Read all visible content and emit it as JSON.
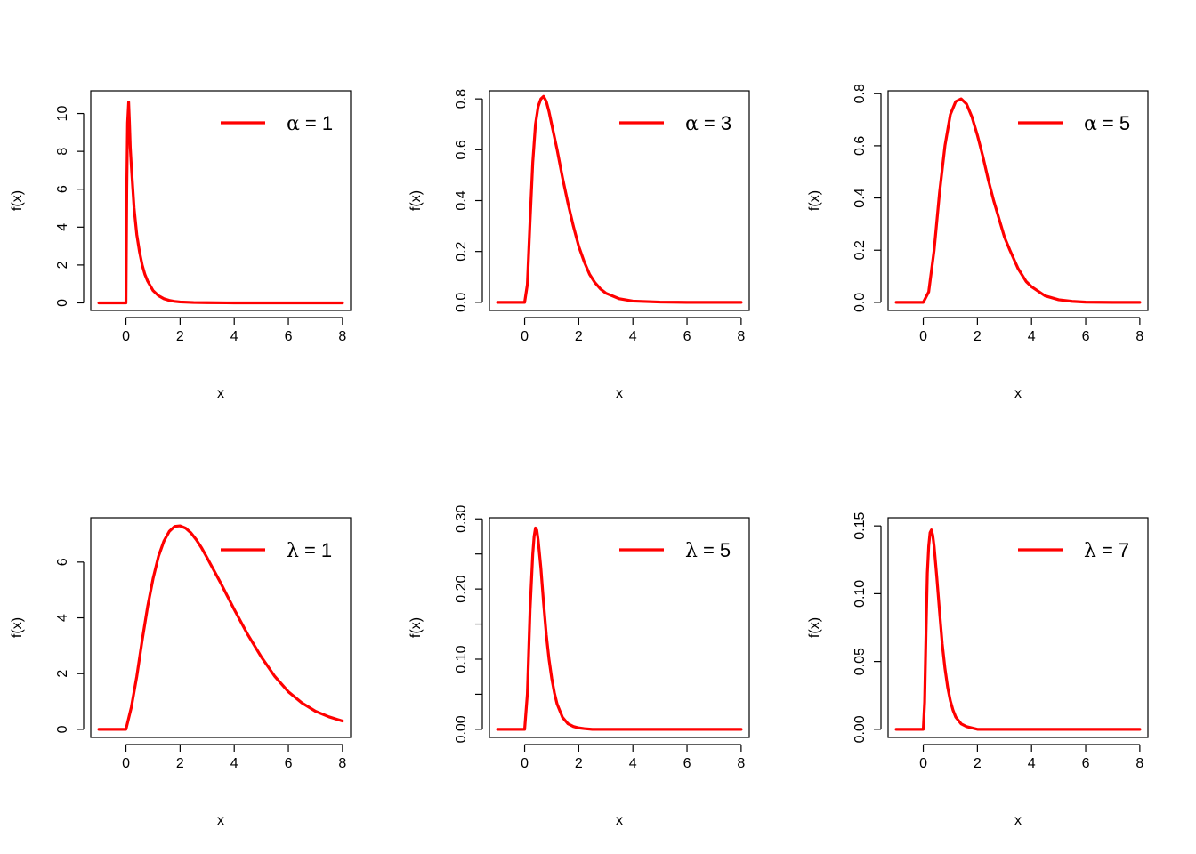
{
  "chart_data": [
    {
      "type": "line",
      "xlabel": "x",
      "ylabel": "f(x)",
      "xlim": [
        -1.3,
        8.3
      ],
      "ylim": [
        -0.4,
        11.2
      ],
      "xticks": [
        0,
        2,
        4,
        6,
        8
      ],
      "yticks": [
        0,
        2,
        4,
        6,
        8,
        10
      ],
      "ytick_labels": [
        "0",
        "2",
        "4",
        "6",
        "8",
        "10"
      ],
      "legend": {
        "position": "top-right",
        "symbol": "α",
        "label": "= 1"
      },
      "series": [
        {
          "color": "#ff0000",
          "x": [
            -1,
            0,
            0.03,
            0.06,
            0.1,
            0.13,
            0.16,
            0.2,
            0.3,
            0.4,
            0.5,
            0.6,
            0.7,
            0.8,
            1.0,
            1.2,
            1.4,
            1.6,
            1.8,
            2.0,
            2.5,
            3,
            4,
            5,
            6,
            7,
            8
          ],
          "y": [
            0,
            0,
            6,
            9.5,
            10.6,
            9.5,
            8.2,
            7.2,
            5.0,
            3.6,
            2.7,
            2.0,
            1.5,
            1.15,
            0.65,
            0.38,
            0.22,
            0.13,
            0.08,
            0.05,
            0.02,
            0.01,
            0,
            0,
            0,
            0,
            0
          ]
        }
      ]
    },
    {
      "type": "line",
      "xlabel": "x",
      "ylabel": "f(x)",
      "xlim": [
        -1.3,
        8.3
      ],
      "ylim": [
        -0.032,
        0.832
      ],
      "xticks": [
        0,
        2,
        4,
        6,
        8
      ],
      "yticks": [
        0,
        0.2,
        0.4,
        0.6,
        0.8
      ],
      "ytick_labels": [
        "0.0",
        "0.2",
        "0.4",
        "0.6",
        "0.8"
      ],
      "legend": {
        "position": "top-right",
        "symbol": "α",
        "label": "= 3"
      },
      "series": [
        {
          "color": "#ff0000",
          "x": [
            -1,
            0,
            0.1,
            0.2,
            0.3,
            0.4,
            0.5,
            0.6,
            0.7,
            0.8,
            0.9,
            1.0,
            1.2,
            1.4,
            1.6,
            1.8,
            2.0,
            2.2,
            2.4,
            2.6,
            2.8,
            3.0,
            3.5,
            4.0,
            5,
            6,
            7,
            8
          ],
          "y": [
            0,
            0,
            0.07,
            0.32,
            0.55,
            0.7,
            0.77,
            0.8,
            0.81,
            0.79,
            0.75,
            0.7,
            0.6,
            0.49,
            0.39,
            0.3,
            0.22,
            0.16,
            0.11,
            0.077,
            0.053,
            0.036,
            0.014,
            0.005,
            0.001,
            0,
            0,
            0
          ]
        }
      ]
    },
    {
      "type": "line",
      "xlabel": "x",
      "ylabel": "f(x)",
      "xlim": [
        -1.3,
        8.3
      ],
      "ylim": [
        -0.031,
        0.811
      ],
      "xticks": [
        0,
        2,
        4,
        6,
        8
      ],
      "yticks": [
        0,
        0.2,
        0.4,
        0.6,
        0.8
      ],
      "ytick_labels": [
        "0.0",
        "0.2",
        "0.4",
        "0.6",
        "0.8"
      ],
      "legend": {
        "position": "top-right",
        "symbol": "α",
        "label": "= 5"
      },
      "series": [
        {
          "color": "#ff0000",
          "x": [
            -1,
            0,
            0.2,
            0.4,
            0.6,
            0.8,
            1.0,
            1.2,
            1.4,
            1.6,
            1.8,
            2.0,
            2.2,
            2.4,
            2.6,
            2.8,
            3.0,
            3.2,
            3.5,
            3.8,
            4.0,
            4.5,
            5.0,
            5.5,
            6,
            7,
            8
          ],
          "y": [
            0,
            0,
            0.04,
            0.2,
            0.42,
            0.6,
            0.72,
            0.77,
            0.78,
            0.76,
            0.71,
            0.64,
            0.56,
            0.47,
            0.39,
            0.32,
            0.25,
            0.2,
            0.13,
            0.08,
            0.06,
            0.025,
            0.01,
            0.004,
            0.001,
            0,
            0
          ]
        }
      ]
    },
    {
      "type": "line",
      "xlabel": "x",
      "ylabel": "f(x)",
      "xlim": [
        -1.3,
        8.3
      ],
      "ylim": [
        -0.29,
        7.59
      ],
      "xticks": [
        0,
        2,
        4,
        6,
        8
      ],
      "yticks": [
        0,
        2,
        4,
        6
      ],
      "ytick_labels": [
        "0",
        "2",
        "4",
        "6"
      ],
      "legend": {
        "position": "top-right",
        "symbol": "λ",
        "label": "= 1"
      },
      "series": [
        {
          "color": "#ff0000",
          "x": [
            -1,
            0,
            0.2,
            0.4,
            0.6,
            0.8,
            1.0,
            1.2,
            1.4,
            1.6,
            1.8,
            2.0,
            2.2,
            2.4,
            2.6,
            2.8,
            3.0,
            3.5,
            4.0,
            4.5,
            5.0,
            5.5,
            6.0,
            6.5,
            7.0,
            7.5,
            8.0
          ],
          "y": [
            0,
            0,
            0.8,
            1.9,
            3.2,
            4.4,
            5.4,
            6.2,
            6.75,
            7.1,
            7.28,
            7.3,
            7.22,
            7.05,
            6.8,
            6.5,
            6.15,
            5.25,
            4.3,
            3.4,
            2.6,
            1.9,
            1.35,
            0.95,
            0.65,
            0.45,
            0.3
          ]
        }
      ]
    },
    {
      "type": "line",
      "xlabel": "x",
      "ylabel": "f(x)",
      "xlim": [
        -1.3,
        8.3
      ],
      "ylim": [
        -0.0116,
        0.3016
      ],
      "xticks": [
        0,
        2,
        4,
        6,
        8
      ],
      "yticks": [
        0,
        0.05,
        0.1,
        0.15,
        0.2,
        0.25,
        0.3
      ],
      "ytick_labels": [
        "0.00",
        "",
        "0.10",
        "",
        "0.20",
        "",
        "0.30"
      ],
      "legend": {
        "position": "top-right",
        "symbol": "λ",
        "label": "= 5"
      },
      "series": [
        {
          "color": "#ff0000",
          "x": [
            -1,
            0,
            0.1,
            0.2,
            0.3,
            0.35,
            0.4,
            0.45,
            0.5,
            0.6,
            0.7,
            0.8,
            0.9,
            1.0,
            1.1,
            1.2,
            1.4,
            1.6,
            1.8,
            2.0,
            2.2,
            2.5,
            3,
            4,
            5,
            6,
            7,
            8
          ],
          "y": [
            0,
            0,
            0.05,
            0.17,
            0.25,
            0.275,
            0.287,
            0.284,
            0.27,
            0.23,
            0.18,
            0.135,
            0.1,
            0.073,
            0.052,
            0.036,
            0.017,
            0.008,
            0.004,
            0.002,
            0.001,
            0,
            0,
            0,
            0,
            0,
            0,
            0
          ]
        }
      ]
    },
    {
      "type": "line",
      "xlabel": "x",
      "ylabel": "f(x)",
      "xlim": [
        -1.3,
        8.3
      ],
      "ylim": [
        -0.006,
        0.156
      ],
      "xticks": [
        0,
        2,
        4,
        6,
        8
      ],
      "yticks": [
        0,
        0.05,
        0.1,
        0.15
      ],
      "ytick_labels": [
        "0.00",
        "0.05",
        "0.10",
        "0.15"
      ],
      "legend": {
        "position": "top-right",
        "symbol": "λ",
        "label": "= 7"
      },
      "series": [
        {
          "color": "#ff0000",
          "x": [
            -1,
            0,
            0.05,
            0.1,
            0.15,
            0.2,
            0.25,
            0.3,
            0.35,
            0.4,
            0.5,
            0.6,
            0.7,
            0.8,
            0.9,
            1.0,
            1.1,
            1.2,
            1.4,
            1.6,
            1.8,
            2.0,
            2.5,
            3,
            4,
            5,
            6,
            7,
            8
          ],
          "y": [
            0,
            0,
            0.02,
            0.07,
            0.115,
            0.135,
            0.145,
            0.147,
            0.143,
            0.135,
            0.112,
            0.087,
            0.063,
            0.045,
            0.031,
            0.021,
            0.014,
            0.009,
            0.004,
            0.002,
            0.001,
            0,
            0,
            0,
            0,
            0,
            0,
            0,
            0
          ]
        }
      ]
    }
  ]
}
